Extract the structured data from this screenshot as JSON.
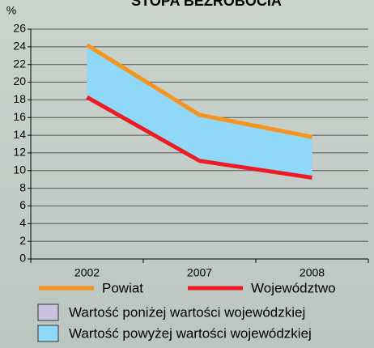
{
  "chart_data": {
    "type": "line",
    "title": "STOPA BEZROBOCIA",
    "y_label": "%",
    "categories": [
      "2002",
      "2007",
      "2008"
    ],
    "series": [
      {
        "name": "Powiat",
        "color": "#f7941d",
        "values": [
          24.2,
          16.3,
          13.8
        ]
      },
      {
        "name": "Województwo",
        "color": "#ed1c24",
        "values": [
          18.3,
          11.1,
          9.2
        ]
      }
    ],
    "fill_legend": [
      {
        "label": "Wartość poniżej wartości wojewódzkiej",
        "color": "#c9c3e0"
      },
      {
        "label": "Wartość powyżej wartości wojewódzkiej",
        "color": "#8fd8f7"
      }
    ],
    "fill_between_color": "#8fd8f7",
    "ylim": [
      0,
      26
    ],
    "yticks": [
      0,
      2,
      4,
      6,
      8,
      10,
      12,
      14,
      16,
      18,
      20,
      22,
      24,
      26
    ],
    "grid": true
  }
}
